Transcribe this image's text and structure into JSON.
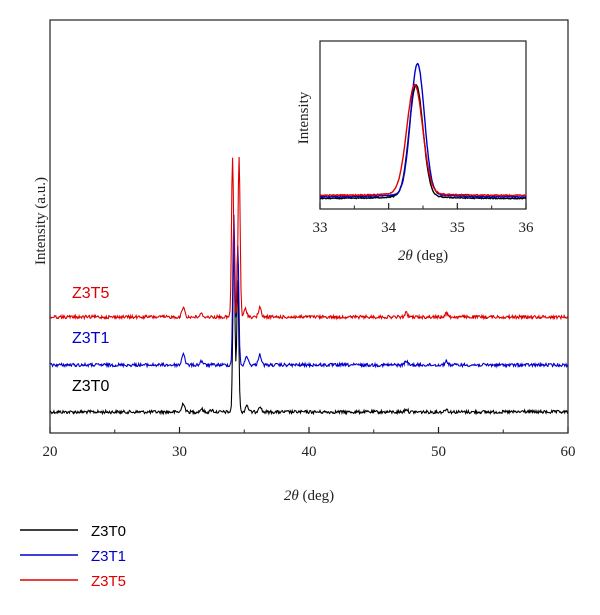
{
  "chart_data": [
    {
      "type": "line",
      "xlabel_var": "2θ",
      "xlabel_unit": " (deg)",
      "ylabel": "Intensity (a.u.)",
      "xlim": [
        20,
        60
      ],
      "xticks": [
        "20",
        "30",
        "40",
        "50",
        "60"
      ],
      "y_ticks_shown": false,
      "grid": false,
      "series": [
        {
          "name": "Z3T0",
          "color": "#000000",
          "offset": 0,
          "peaks": [
            [
              30.3,
              9
            ],
            [
              31.7,
              3
            ],
            [
              32.5,
              2
            ],
            [
              34.2,
              165
            ],
            [
              34.5,
              130
            ],
            [
              35.2,
              7
            ],
            [
              36.2,
              6
            ],
            [
              47.5,
              3
            ],
            [
              50.6,
              3
            ],
            [
              56.6,
              1
            ]
          ]
        },
        {
          "name": "Z3T1",
          "color": "#0000cc",
          "offset": 47,
          "peaks": [
            [
              30.3,
              12
            ],
            [
              31.7,
              4
            ],
            [
              34.2,
              150
            ],
            [
              34.5,
              120
            ],
            [
              35.2,
              9
            ],
            [
              36.2,
              11
            ],
            [
              47.5,
              4
            ],
            [
              50.6,
              4
            ]
          ]
        },
        {
          "name": "Z3T5",
          "color": "#dd0000",
          "offset": 95,
          "peaks": [
            [
              30.3,
              10
            ],
            [
              31.7,
              3
            ],
            [
              34.1,
              160
            ],
            [
              34.6,
              160
            ],
            [
              35.1,
              8
            ],
            [
              36.2,
              9
            ],
            [
              47.5,
              4
            ],
            [
              50.6,
              4
            ]
          ]
        }
      ],
      "legend_position": "bottom-left"
    },
    {
      "type": "line",
      "inset": true,
      "xlabel_var": "2θ",
      "xlabel_unit": " (deg)",
      "ylabel": "Intensity",
      "xlim": [
        33,
        36
      ],
      "xticks": [
        "33",
        "34",
        "35",
        "36"
      ],
      "y_ticks_shown": false,
      "series": [
        {
          "name": "Z3T0",
          "color": "#000000",
          "peak_x": 34.4,
          "height": 0.7,
          "width": 0.1,
          "baseline": 0.015
        },
        {
          "name": "Z3T1",
          "color": "#0000cc",
          "peak_x": 34.42,
          "height": 0.82,
          "width": 0.1,
          "baseline": 0.025
        },
        {
          "name": "Z3T5",
          "color": "#dd0000",
          "peak_x": 34.38,
          "height": 0.68,
          "width": 0.115,
          "baseline": 0.035
        }
      ]
    }
  ]
}
